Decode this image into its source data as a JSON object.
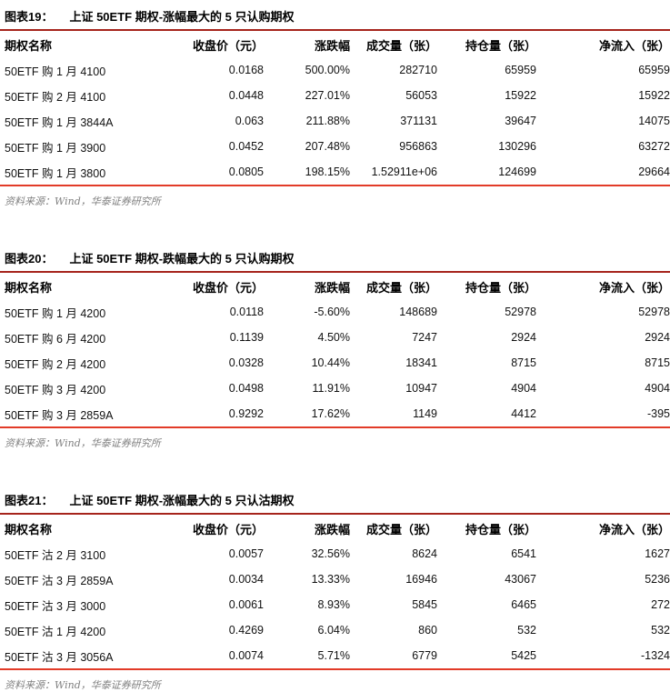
{
  "colors": {
    "title_rule": "#A6241C",
    "bottom_rule": "#E23B28",
    "source_text": "#808080"
  },
  "columns": [
    "期权名称",
    "收盘价（元）",
    "涨跌幅",
    "成交量（张）",
    "持仓量（张）",
    "净流入（张）"
  ],
  "tables": [
    {
      "figure_label": "图表19：",
      "title": "上证 50ETF 期权-涨幅最大的 5 只认购期权",
      "columns": [
        "期权名称",
        "收盘价（元）",
        "涨跌幅",
        "成交量（张）",
        "持仓量（张）",
        "净流入（张）"
      ],
      "rows": [
        [
          "50ETF 购 1 月 4100",
          "0.0168",
          "500.00%",
          "282710",
          "65959",
          "65959"
        ],
        [
          "50ETF 购 2 月 4100",
          "0.0448",
          "227.01%",
          "56053",
          "15922",
          "15922"
        ],
        [
          "50ETF 购 1 月 3844A",
          "0.063",
          "211.88%",
          "371131",
          "39647",
          "14075"
        ],
        [
          "50ETF 购 1 月 3900",
          "0.0452",
          "207.48%",
          "956863",
          "130296",
          "63272"
        ],
        [
          "50ETF 购 1 月 3800",
          "0.0805",
          "198.15%",
          "1.52911e+06",
          "124699",
          "29664"
        ]
      ],
      "source": "资料来源：Wind，华泰证券研究所"
    },
    {
      "figure_label": "图表20：",
      "title": "上证 50ETF 期权-跌幅最大的 5 只认购期权",
      "columns": [
        "期权名称",
        "收盘价（元）",
        "涨跌幅",
        "成交量（张）",
        "持仓量（张）",
        "净流入（张）"
      ],
      "rows": [
        [
          "50ETF 购 1 月 4200",
          "0.0118",
          "-5.60%",
          "148689",
          "52978",
          "52978"
        ],
        [
          "50ETF 购 6 月 4200",
          "0.1139",
          "4.50%",
          "7247",
          "2924",
          "2924"
        ],
        [
          "50ETF 购 2 月 4200",
          "0.0328",
          "10.44%",
          "18341",
          "8715",
          "8715"
        ],
        [
          "50ETF 购 3 月 4200",
          "0.0498",
          "11.91%",
          "10947",
          "4904",
          "4904"
        ],
        [
          "50ETF 购 3 月 2859A",
          "0.9292",
          "17.62%",
          "1149",
          "4412",
          "-395"
        ]
      ],
      "source": "资料来源：Wind，华泰证券研究所"
    },
    {
      "figure_label": "图表21：",
      "title": "上证 50ETF 期权-涨幅最大的 5 只认沽期权",
      "columns": [
        "期权名称",
        "收盘价（元）",
        "涨跌幅",
        "成交量（张）",
        "持仓量（张）",
        "净流入（张）"
      ],
      "rows": [
        [
          "50ETF 沽 2 月 3100",
          "0.0057",
          "32.56%",
          "8624",
          "6541",
          "1627"
        ],
        [
          "50ETF 沽 3 月 2859A",
          "0.0034",
          "13.33%",
          "16946",
          "43067",
          "5236"
        ],
        [
          "50ETF 沽 3 月 3000",
          "0.0061",
          "8.93%",
          "5845",
          "6465",
          "272"
        ],
        [
          "50ETF 沽 1 月 4200",
          "0.4269",
          "6.04%",
          "860",
          "532",
          "532"
        ],
        [
          "50ETF 沽 3 月 3056A",
          "0.0074",
          "5.71%",
          "6779",
          "5425",
          "-1324"
        ]
      ],
      "source": "资料来源：Wind，华泰证券研究所"
    }
  ]
}
